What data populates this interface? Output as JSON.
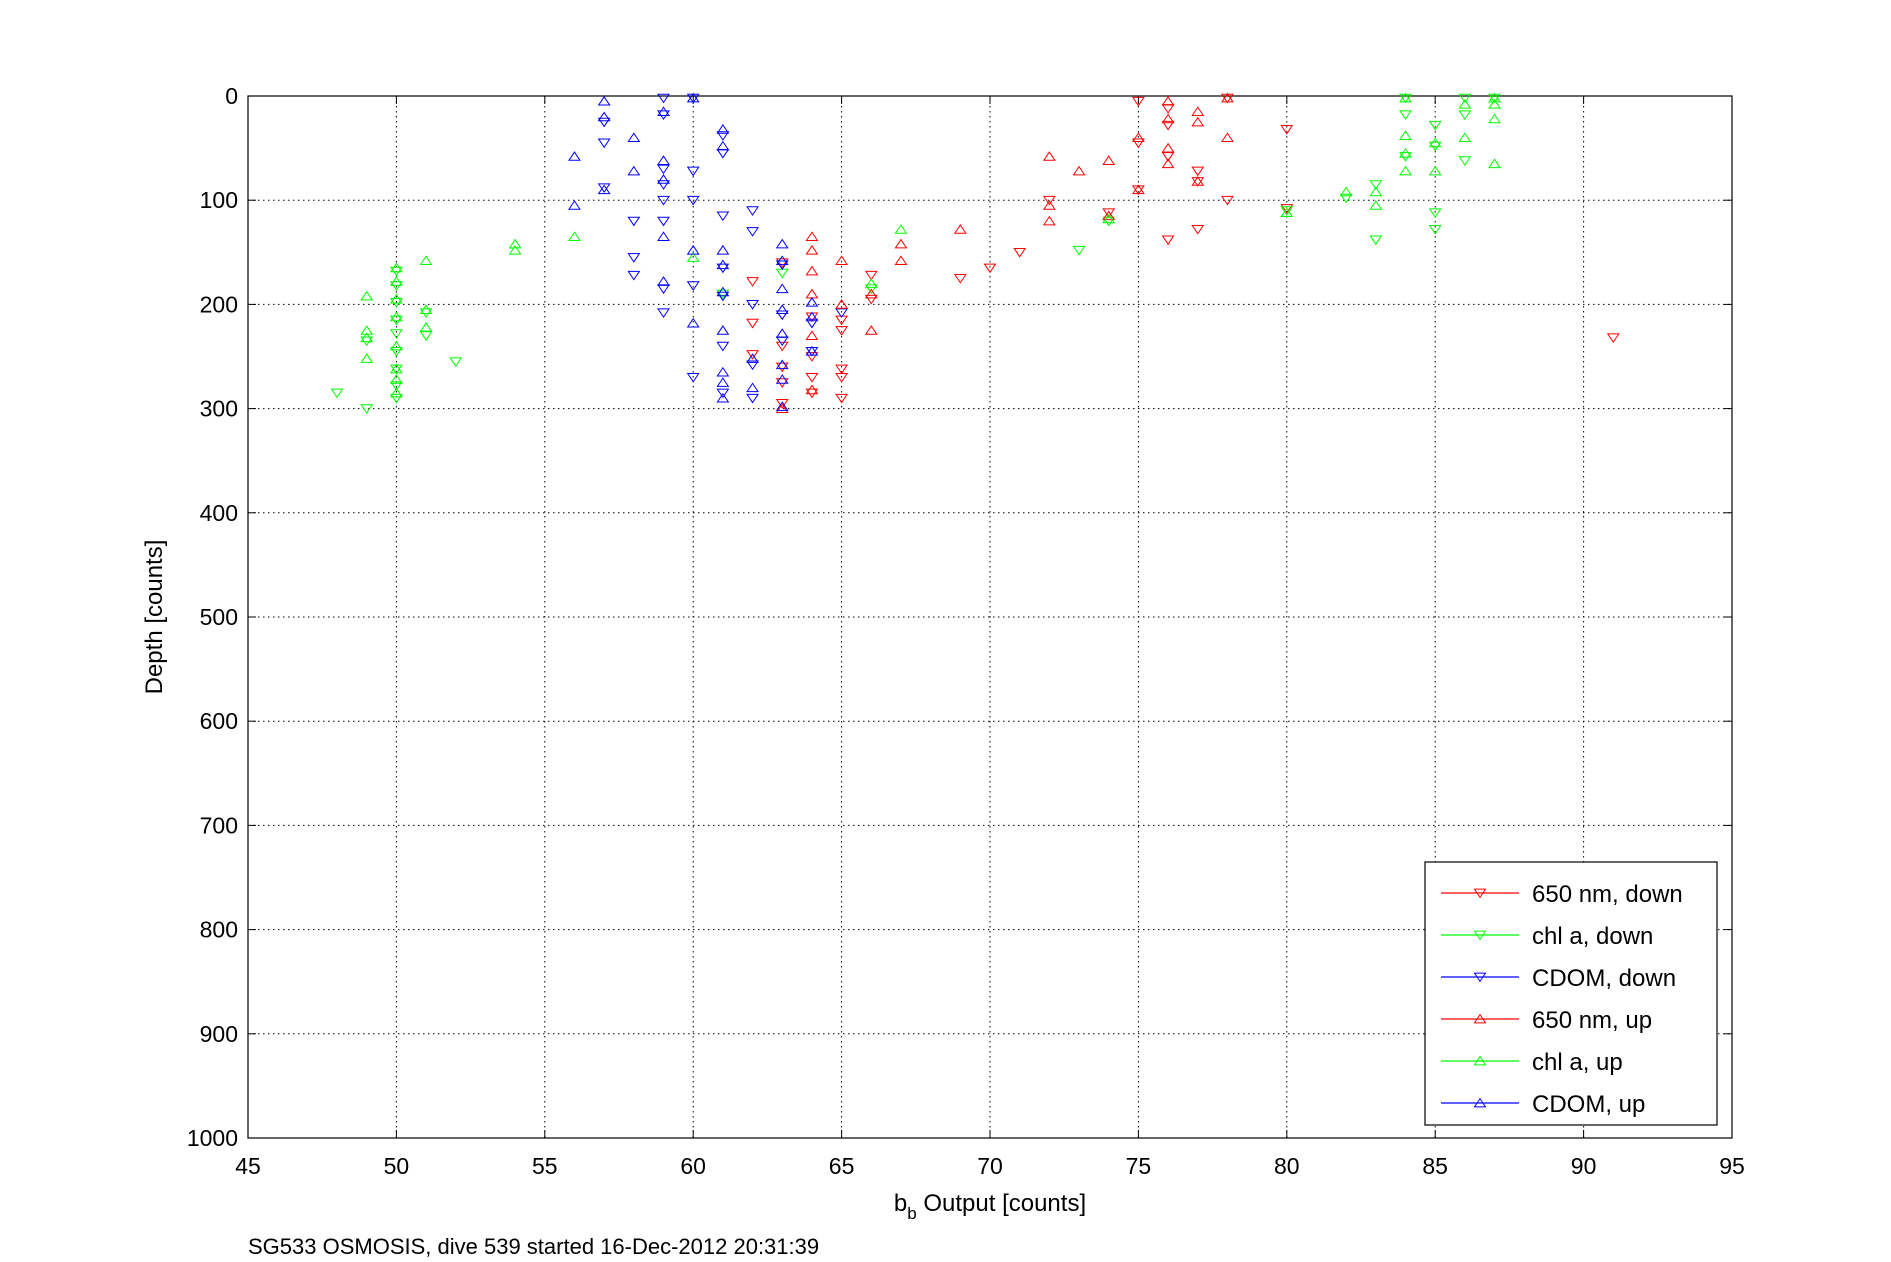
{
  "chart_data": {
    "type": "scatter",
    "xlabel_main": "b",
    "xlabel_sub": "b",
    "xlabel_rest": " Output [counts]",
    "ylabel": "Depth [counts]",
    "caption": "SG533 OSMOSIS, dive 539 started 16-Dec-2012 20:31:39",
    "xlim": [
      45,
      95
    ],
    "ylim": [
      0,
      1000
    ],
    "y_reversed": true,
    "grid": true,
    "legend_position": "bottom-right",
    "x_ticks": [
      45,
      50,
      55,
      60,
      65,
      70,
      75,
      80,
      85,
      90,
      95
    ],
    "y_ticks": [
      0,
      100,
      200,
      300,
      400,
      500,
      600,
      700,
      800,
      900,
      1000
    ],
    "series": [
      {
        "name": "650 nm, down",
        "color": "#ff0000",
        "marker": "triangle-down",
        "points": [
          [
            62,
            178
          ],
          [
            62,
            218
          ],
          [
            62,
            248
          ],
          [
            63,
            160
          ],
          [
            63,
            210
          ],
          [
            63,
            240
          ],
          [
            63,
            260
          ],
          [
            63,
            275
          ],
          [
            63,
            295
          ],
          [
            64,
            212
          ],
          [
            64,
            250
          ],
          [
            64,
            270
          ],
          [
            64,
            285
          ],
          [
            65,
            215
          ],
          [
            65,
            225
          ],
          [
            65,
            262
          ],
          [
            65,
            270
          ],
          [
            65,
            290
          ],
          [
            66,
            172
          ],
          [
            66,
            195
          ],
          [
            69,
            175
          ],
          [
            70,
            165
          ],
          [
            71,
            150
          ],
          [
            72,
            100
          ],
          [
            74,
            112
          ],
          [
            75,
            5
          ],
          [
            75,
            45
          ],
          [
            75,
            90
          ],
          [
            76,
            12
          ],
          [
            76,
            28
          ],
          [
            76,
            58
          ],
          [
            76,
            138
          ],
          [
            77,
            72
          ],
          [
            77,
            82
          ],
          [
            77,
            128
          ],
          [
            78,
            2
          ],
          [
            78,
            100
          ],
          [
            80,
            32
          ],
          [
            80,
            108
          ],
          [
            91,
            232
          ]
        ]
      },
      {
        "name": "chl a, down",
        "color": "#00ff00",
        "marker": "triangle-down",
        "points": [
          [
            48,
            285
          ],
          [
            49,
            235
          ],
          [
            49,
            300
          ],
          [
            50,
            168
          ],
          [
            50,
            182
          ],
          [
            50,
            198
          ],
          [
            50,
            215
          ],
          [
            50,
            228
          ],
          [
            50,
            245
          ],
          [
            50,
            262
          ],
          [
            50,
            278
          ],
          [
            50,
            290
          ],
          [
            51,
            208
          ],
          [
            51,
            230
          ],
          [
            52,
            255
          ],
          [
            61,
            190
          ],
          [
            63,
            170
          ],
          [
            66,
            185
          ],
          [
            73,
            148
          ],
          [
            74,
            120
          ],
          [
            80,
            110
          ],
          [
            82,
            98
          ],
          [
            83,
            85
          ],
          [
            83,
            138
          ],
          [
            84,
            2
          ],
          [
            84,
            18
          ],
          [
            84,
            58
          ],
          [
            85,
            28
          ],
          [
            85,
            48
          ],
          [
            85,
            112
          ],
          [
            85,
            128
          ],
          [
            86,
            2
          ],
          [
            86,
            18
          ],
          [
            86,
            62
          ],
          [
            87,
            2
          ]
        ]
      },
      {
        "name": "CDOM, down",
        "color": "#0000ff",
        "marker": "triangle-down",
        "points": [
          [
            57,
            25
          ],
          [
            57,
            45
          ],
          [
            57,
            88
          ],
          [
            58,
            120
          ],
          [
            58,
            155
          ],
          [
            58,
            172
          ],
          [
            59,
            2
          ],
          [
            59,
            18
          ],
          [
            59,
            70
          ],
          [
            59,
            85
          ],
          [
            59,
            100
          ],
          [
            59,
            120
          ],
          [
            59,
            185
          ],
          [
            59,
            208
          ],
          [
            60,
            2
          ],
          [
            60,
            72
          ],
          [
            60,
            100
          ],
          [
            60,
            182
          ],
          [
            60,
            270
          ],
          [
            61,
            38
          ],
          [
            61,
            55
          ],
          [
            61,
            115
          ],
          [
            61,
            165
          ],
          [
            61,
            192
          ],
          [
            61,
            240
          ],
          [
            61,
            285
          ],
          [
            62,
            110
          ],
          [
            62,
            130
          ],
          [
            62,
            200
          ],
          [
            62,
            258
          ],
          [
            62,
            290
          ],
          [
            63,
            162
          ],
          [
            63,
            210
          ],
          [
            63,
            235
          ],
          [
            64,
            218
          ],
          [
            64,
            245
          ],
          [
            65,
            208
          ]
        ]
      },
      {
        "name": "650 nm, up",
        "color": "#ff0000",
        "marker": "triangle-up",
        "points": [
          [
            63,
            300
          ],
          [
            64,
            135
          ],
          [
            64,
            148
          ],
          [
            64,
            168
          ],
          [
            64,
            190
          ],
          [
            64,
            230
          ],
          [
            64,
            282
          ],
          [
            65,
            158
          ],
          [
            65,
            200
          ],
          [
            66,
            190
          ],
          [
            66,
            225
          ],
          [
            67,
            142
          ],
          [
            67,
            158
          ],
          [
            69,
            128
          ],
          [
            72,
            58
          ],
          [
            72,
            105
          ],
          [
            72,
            120
          ],
          [
            73,
            72
          ],
          [
            74,
            62
          ],
          [
            74,
            115
          ],
          [
            75,
            40
          ],
          [
            75,
            90
          ],
          [
            76,
            5
          ],
          [
            76,
            22
          ],
          [
            76,
            50
          ],
          [
            76,
            65
          ],
          [
            77,
            15
          ],
          [
            77,
            25
          ],
          [
            77,
            82
          ],
          [
            78,
            2
          ],
          [
            78,
            40
          ]
        ]
      },
      {
        "name": "chl a, up",
        "color": "#00ff00",
        "marker": "triangle-up",
        "points": [
          [
            49,
            192
          ],
          [
            49,
            225
          ],
          [
            49,
            232
          ],
          [
            49,
            252
          ],
          [
            50,
            165
          ],
          [
            50,
            178
          ],
          [
            50,
            195
          ],
          [
            50,
            212
          ],
          [
            50,
            240
          ],
          [
            50,
            262
          ],
          [
            50,
            272
          ],
          [
            50,
            285
          ],
          [
            51,
            158
          ],
          [
            51,
            205
          ],
          [
            51,
            222
          ],
          [
            54,
            142
          ],
          [
            54,
            148
          ],
          [
            56,
            135
          ],
          [
            60,
            155
          ],
          [
            66,
            180
          ],
          [
            67,
            128
          ],
          [
            74,
            118
          ],
          [
            80,
            112
          ],
          [
            82,
            92
          ],
          [
            83,
            92
          ],
          [
            83,
            105
          ],
          [
            84,
            2
          ],
          [
            84,
            38
          ],
          [
            84,
            55
          ],
          [
            84,
            72
          ],
          [
            85,
            45
          ],
          [
            85,
            72
          ],
          [
            86,
            8
          ],
          [
            86,
            40
          ],
          [
            87,
            2
          ],
          [
            87,
            8
          ],
          [
            87,
            22
          ],
          [
            87,
            65
          ]
        ]
      },
      {
        "name": "CDOM, up",
        "color": "#0000ff",
        "marker": "triangle-up",
        "points": [
          [
            56,
            58
          ],
          [
            56,
            105
          ],
          [
            57,
            5
          ],
          [
            57,
            20
          ],
          [
            57,
            90
          ],
          [
            58,
            40
          ],
          [
            58,
            72
          ],
          [
            59,
            15
          ],
          [
            59,
            62
          ],
          [
            59,
            80
          ],
          [
            59,
            135
          ],
          [
            59,
            178
          ],
          [
            60,
            2
          ],
          [
            60,
            148
          ],
          [
            60,
            218
          ],
          [
            61,
            32
          ],
          [
            61,
            48
          ],
          [
            61,
            148
          ],
          [
            61,
            162
          ],
          [
            61,
            188
          ],
          [
            61,
            225
          ],
          [
            61,
            265
          ],
          [
            61,
            275
          ],
          [
            61,
            290
          ],
          [
            62,
            252
          ],
          [
            62,
            280
          ],
          [
            63,
            142
          ],
          [
            63,
            158
          ],
          [
            63,
            185
          ],
          [
            63,
            205
          ],
          [
            63,
            228
          ],
          [
            63,
            258
          ],
          [
            63,
            272
          ],
          [
            63,
            298
          ],
          [
            64,
            198
          ],
          [
            64,
            212
          ],
          [
            64,
            245
          ]
        ]
      }
    ]
  }
}
